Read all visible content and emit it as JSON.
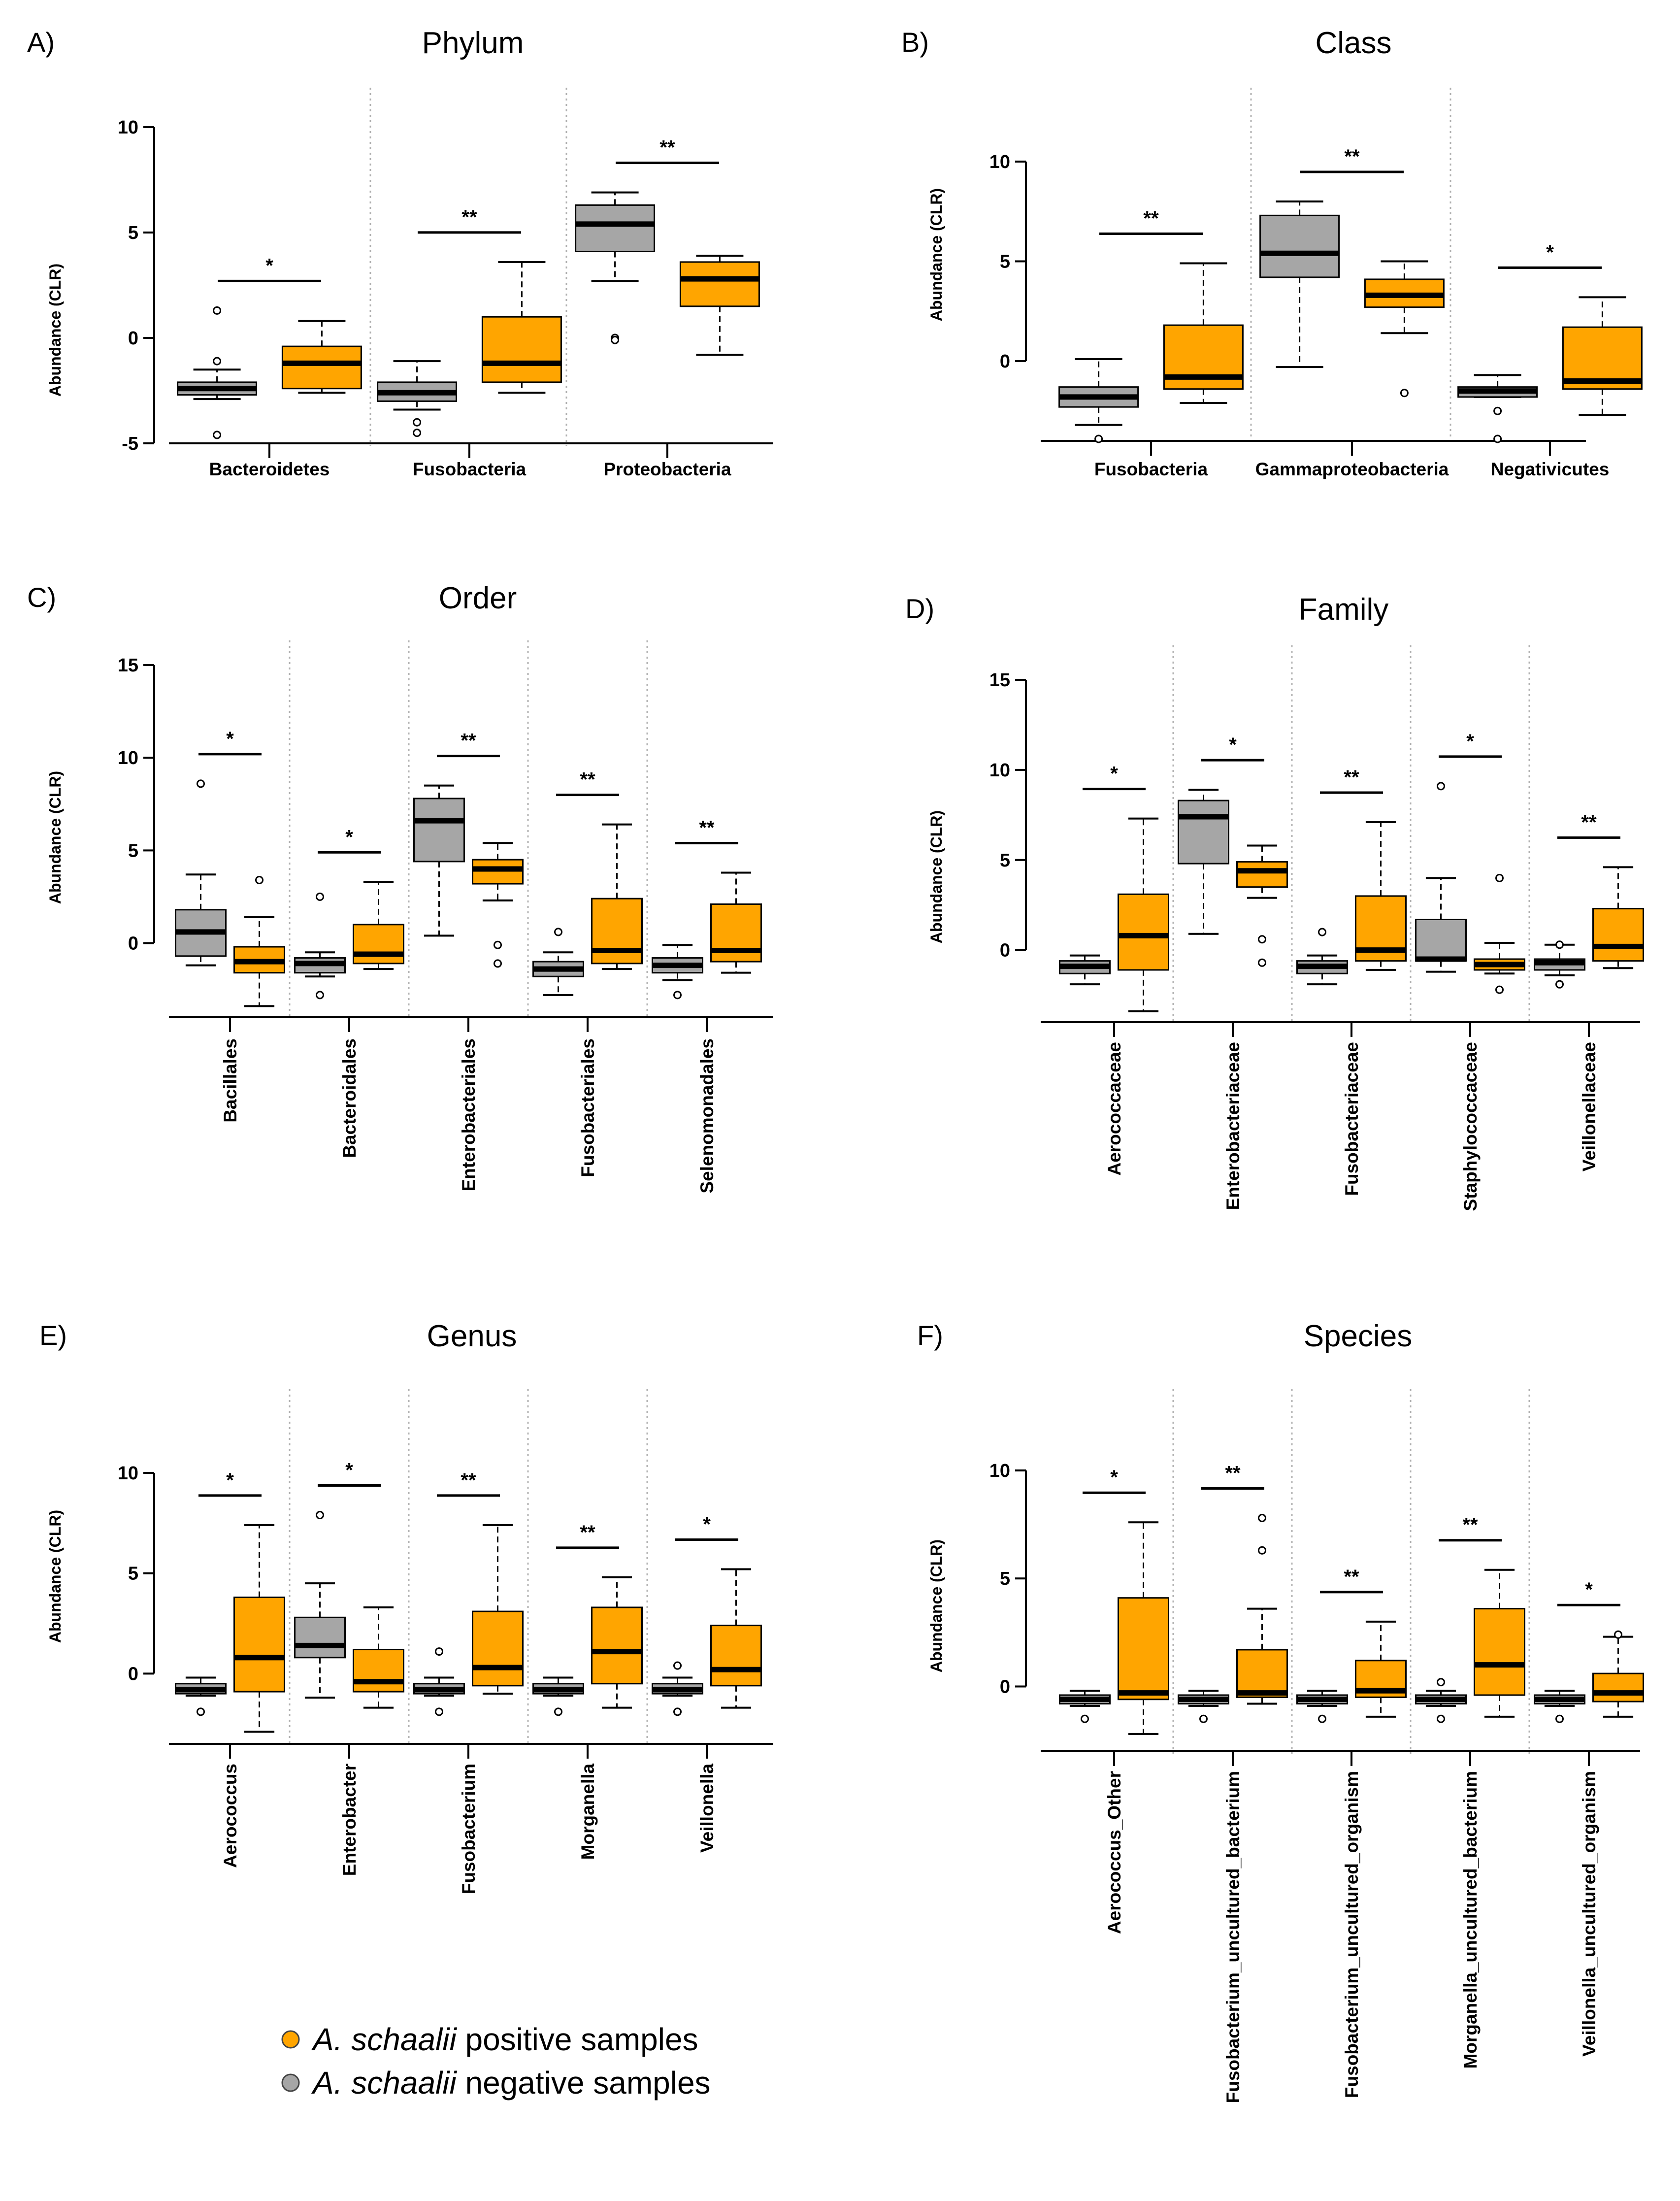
{
  "colors": {
    "positive": "#FFA500",
    "negative": "#A6A6A6"
  },
  "legend": {
    "items": [
      {
        "species": "A. schaalii",
        "label": "positive samples",
        "color": "#FFA500"
      },
      {
        "species": "A. schaalii",
        "label": "negative samples",
        "color": "#A6A6A6"
      }
    ]
  },
  "chart_data": [
    {
      "type": "box",
      "letter": "A)",
      "title": "Phylum",
      "ylabel": "Abundance (CLR)",
      "ylim": [
        -5,
        10
      ],
      "yticks": [
        -5,
        0,
        5,
        10
      ],
      "label_rotation": "horizontal",
      "categories": [
        "Bacteroidetes",
        "Fusobacteria",
        "Proteobacteria"
      ],
      "significance": [
        "*",
        "**",
        "**"
      ],
      "series": [
        {
          "name": "A. schaalii negative samples",
          "color": "#A6A6A6",
          "boxes": [
            {
              "wlo": -2.9,
              "q1": -2.7,
              "med": -2.4,
              "q3": -2.1,
              "whi": -1.5,
              "outliers": [
                1.3,
                -1.1,
                -4.6
              ]
            },
            {
              "wlo": -3.4,
              "q1": -3.0,
              "med": -2.6,
              "q3": -2.1,
              "whi": -1.1,
              "outliers": [
                -4.0,
                -4.5
              ]
            },
            {
              "wlo": 2.7,
              "q1": 4.1,
              "med": 5.4,
              "q3": 6.3,
              "whi": 6.9,
              "outliers": [
                0.0,
                -0.1
              ]
            }
          ]
        },
        {
          "name": "A. schaalii positive samples",
          "color": "#FFA500",
          "boxes": [
            {
              "wlo": -2.6,
              "q1": -2.4,
              "med": -1.2,
              "q3": -0.4,
              "whi": 0.8,
              "outliers": []
            },
            {
              "wlo": -2.6,
              "q1": -2.1,
              "med": -1.2,
              "q3": 1.0,
              "whi": 3.6,
              "outliers": []
            },
            {
              "wlo": -0.8,
              "q1": 1.5,
              "med": 2.8,
              "q3": 3.6,
              "whi": 3.9,
              "outliers": []
            }
          ]
        }
      ]
    },
    {
      "type": "box",
      "letter": "B)",
      "title": "Class",
      "ylabel": "Abundance (CLR)",
      "ylim": [
        -4,
        10
      ],
      "yticks": [
        0,
        5,
        10
      ],
      "label_rotation": "horizontal",
      "categories": [
        "Fusobacteria",
        "Gammaproteobacteria",
        "Negativicutes"
      ],
      "significance": [
        "**",
        "**",
        "*"
      ],
      "series": [
        {
          "name": "A. schaalii negative samples",
          "color": "#A6A6A6",
          "boxes": [
            {
              "wlo": -3.2,
              "q1": -2.3,
              "med": -1.8,
              "q3": -1.3,
              "whi": 0.1,
              "outliers": [
                -3.9
              ]
            },
            {
              "wlo": -0.3,
              "q1": 4.2,
              "med": 5.4,
              "q3": 7.3,
              "whi": 8.0,
              "outliers": []
            },
            {
              "wlo": -1.8,
              "q1": -1.8,
              "med": -1.5,
              "q3": -1.3,
              "whi": -0.7,
              "outliers": [
                -2.5,
                -3.9
              ]
            }
          ]
        },
        {
          "name": "A. schaalii positive samples",
          "color": "#FFA500",
          "boxes": [
            {
              "wlo": -2.1,
              "q1": -1.4,
              "med": -0.8,
              "q3": 1.8,
              "whi": 4.9,
              "outliers": []
            },
            {
              "wlo": 1.4,
              "q1": 2.7,
              "med": 3.3,
              "q3": 4.1,
              "whi": 5.0,
              "outliers": [
                -1.6
              ]
            },
            {
              "wlo": -2.7,
              "q1": -1.4,
              "med": -1.0,
              "q3": 1.7,
              "whi": 3.2,
              "outliers": []
            }
          ]
        }
      ]
    },
    {
      "type": "box",
      "letter": "C)",
      "title": "Order",
      "ylabel": "Abundance (CLR)",
      "ylim": [
        -4,
        15
      ],
      "yticks": [
        0,
        5,
        10,
        15
      ],
      "label_rotation": "vertical",
      "categories": [
        "Bacillales",
        "Bacteroidales",
        "Enterobacteriales",
        "Fusobacteriales",
        "Selenomonadales"
      ],
      "significance": [
        "*",
        "*",
        "**",
        "**",
        "**"
      ],
      "series": [
        {
          "name": "A. schaalii negative samples",
          "color": "#A6A6A6",
          "boxes": [
            {
              "wlo": -1.2,
              "q1": -0.7,
              "med": 0.6,
              "q3": 1.8,
              "whi": 3.7,
              "outliers": [
                8.6
              ]
            },
            {
              "wlo": -1.8,
              "q1": -1.6,
              "med": -1.1,
              "q3": -0.8,
              "whi": -0.5,
              "outliers": [
                2.5,
                -2.8
              ]
            },
            {
              "wlo": 0.4,
              "q1": 4.4,
              "med": 6.6,
              "q3": 7.8,
              "whi": 8.5,
              "outliers": []
            },
            {
              "wlo": -2.8,
              "q1": -1.8,
              "med": -1.4,
              "q3": -1.0,
              "whi": -0.5,
              "outliers": [
                0.6
              ]
            },
            {
              "wlo": -2.0,
              "q1": -1.6,
              "med": -1.2,
              "q3": -0.8,
              "whi": -0.1,
              "outliers": [
                -2.8
              ]
            }
          ]
        },
        {
          "name": "A. schaalii positive samples",
          "color": "#FFA500",
          "boxes": [
            {
              "wlo": -3.4,
              "q1": -1.6,
              "med": -1.0,
              "q3": -0.2,
              "whi": 1.4,
              "outliers": [
                3.4
              ]
            },
            {
              "wlo": -1.4,
              "q1": -1.1,
              "med": -0.6,
              "q3": 1.0,
              "whi": 3.3,
              "outliers": []
            },
            {
              "wlo": 2.3,
              "q1": 3.2,
              "med": 4.0,
              "q3": 4.5,
              "whi": 5.4,
              "outliers": [
                -0.1,
                -1.1
              ]
            },
            {
              "wlo": -1.4,
              "q1": -1.1,
              "med": -0.4,
              "q3": 2.4,
              "whi": 6.4,
              "outliers": []
            },
            {
              "wlo": -1.6,
              "q1": -1.0,
              "med": -0.4,
              "q3": 2.1,
              "whi": 3.8,
              "outliers": []
            }
          ]
        }
      ]
    },
    {
      "type": "box",
      "letter": "D)",
      "title": "Family",
      "ylabel": "Abundance (CLR)",
      "ylim": [
        -4,
        15
      ],
      "yticks": [
        0,
        5,
        10,
        15
      ],
      "label_rotation": "vertical",
      "categories": [
        "Aerococcaceae",
        "Enterobacteriaceae",
        "Fusobacteriaceae",
        "Staphylococcaceae",
        "Veillonellaceae"
      ],
      "significance": [
        "*",
        "*",
        "**",
        "*",
        "**"
      ],
      "series": [
        {
          "name": "A. schaalii negative samples",
          "color": "#A6A6A6",
          "boxes": [
            {
              "wlo": -1.9,
              "q1": -1.3,
              "med": -0.9,
              "q3": -0.6,
              "whi": -0.3,
              "outliers": []
            },
            {
              "wlo": 0.9,
              "q1": 4.8,
              "med": 7.4,
              "q3": 8.3,
              "whi": 8.9,
              "outliers": []
            },
            {
              "wlo": -1.9,
              "q1": -1.3,
              "med": -0.9,
              "q3": -0.6,
              "whi": -0.3,
              "outliers": [
                1.0
              ]
            },
            {
              "wlo": -1.2,
              "q1": -0.6,
              "med": -0.5,
              "q3": 1.7,
              "whi": 4.0,
              "outliers": [
                9.1
              ]
            },
            {
              "wlo": -1.4,
              "q1": -1.1,
              "med": -0.7,
              "q3": -0.5,
              "whi": 0.3,
              "outliers": [
                0.3,
                -1.9
              ]
            }
          ]
        },
        {
          "name": "A. schaalii positive samples",
          "color": "#FFA500",
          "boxes": [
            {
              "wlo": -3.4,
              "q1": -1.1,
              "med": 0.8,
              "q3": 3.1,
              "whi": 7.3,
              "outliers": []
            },
            {
              "wlo": 2.9,
              "q1": 3.5,
              "med": 4.4,
              "q3": 4.9,
              "whi": 5.8,
              "outliers": [
                0.6,
                -0.7
              ]
            },
            {
              "wlo": -1.1,
              "q1": -0.6,
              "med": 0.0,
              "q3": 3.0,
              "whi": 7.1,
              "outliers": []
            },
            {
              "wlo": -1.3,
              "q1": -1.1,
              "med": -0.8,
              "q3": -0.5,
              "whi": 0.4,
              "outliers": [
                4.0,
                -2.2
              ]
            },
            {
              "wlo": -1.0,
              "q1": -0.6,
              "med": 0.2,
              "q3": 2.3,
              "whi": 4.6,
              "outliers": []
            }
          ]
        }
      ]
    },
    {
      "type": "box",
      "letter": "E)",
      "title": "Genus",
      "ylabel": "Abundance (CLR)",
      "ylim": [
        -3.5,
        10
      ],
      "yticks": [
        0,
        5,
        10
      ],
      "label_rotation": "vertical",
      "categories": [
        "Aerococcus",
        "Enterobacter",
        "Fusobacterium",
        "Morganella",
        "Veillonella"
      ],
      "significance": [
        "*",
        "*",
        "**",
        "**",
        "*"
      ],
      "series": [
        {
          "name": "A. schaalii negative samples",
          "color": "#A6A6A6",
          "boxes": [
            {
              "wlo": -1.1,
              "q1": -1.0,
              "med": -0.8,
              "q3": -0.5,
              "whi": -0.2,
              "outliers": [
                -1.9
              ]
            },
            {
              "wlo": -1.2,
              "q1": 0.8,
              "med": 1.4,
              "q3": 2.8,
              "whi": 4.5,
              "outliers": [
                7.9
              ]
            },
            {
              "wlo": -1.1,
              "q1": -1.0,
              "med": -0.8,
              "q3": -0.5,
              "whi": -0.2,
              "outliers": [
                1.1,
                -1.9
              ]
            },
            {
              "wlo": -1.1,
              "q1": -1.0,
              "med": -0.8,
              "q3": -0.5,
              "whi": -0.2,
              "outliers": [
                -1.9
              ]
            },
            {
              "wlo": -1.1,
              "q1": -1.0,
              "med": -0.8,
              "q3": -0.5,
              "whi": -0.2,
              "outliers": [
                0.4,
                -1.9
              ]
            }
          ]
        },
        {
          "name": "A. schaalii positive samples",
          "color": "#FFA500",
          "boxes": [
            {
              "wlo": -2.9,
              "q1": -0.9,
              "med": 0.8,
              "q3": 3.8,
              "whi": 7.4,
              "outliers": []
            },
            {
              "wlo": -1.7,
              "q1": -0.9,
              "med": -0.4,
              "q3": 1.2,
              "whi": 3.3,
              "outliers": []
            },
            {
              "wlo": -1.0,
              "q1": -0.6,
              "med": 0.3,
              "q3": 3.1,
              "whi": 7.4,
              "outliers": []
            },
            {
              "wlo": -1.7,
              "q1": -0.5,
              "med": 1.1,
              "q3": 3.3,
              "whi": 4.8,
              "outliers": []
            },
            {
              "wlo": -1.7,
              "q1": -0.6,
              "med": 0.2,
              "q3": 2.4,
              "whi": 5.2,
              "outliers": []
            }
          ]
        }
      ]
    },
    {
      "type": "box",
      "letter": "F)",
      "title": "Species",
      "ylabel": "Abundance (CLR)",
      "ylim": [
        -3,
        10
      ],
      "yticks": [
        0,
        5,
        10
      ],
      "label_rotation": "vertical",
      "categories": [
        "Aerococcus_Other",
        "Fusobacterium_uncultured_bacterium",
        "Fusobacterium_uncultured_organism",
        "Morganella_uncultured_bacterium",
        "Veillonella_uncultured_organism"
      ],
      "significance": [
        "*",
        "**",
        "**",
        "**",
        "*"
      ],
      "series": [
        {
          "name": "A. schaalii negative samples",
          "color": "#A6A6A6",
          "boxes": [
            {
              "wlo": -0.9,
              "q1": -0.8,
              "med": -0.6,
              "q3": -0.4,
              "whi": -0.2,
              "outliers": [
                -1.5
              ]
            },
            {
              "wlo": -0.9,
              "q1": -0.8,
              "med": -0.6,
              "q3": -0.4,
              "whi": -0.2,
              "outliers": [
                -1.5
              ]
            },
            {
              "wlo": -0.9,
              "q1": -0.8,
              "med": -0.6,
              "q3": -0.4,
              "whi": -0.2,
              "outliers": [
                -1.5
              ]
            },
            {
              "wlo": -0.9,
              "q1": -0.8,
              "med": -0.6,
              "q3": -0.4,
              "whi": -0.2,
              "outliers": [
                0.2,
                -1.5
              ]
            },
            {
              "wlo": -0.9,
              "q1": -0.8,
              "med": -0.6,
              "q3": -0.4,
              "whi": -0.2,
              "outliers": [
                -1.5
              ]
            }
          ]
        },
        {
          "name": "A. schaalii positive samples",
          "color": "#FFA500",
          "boxes": [
            {
              "wlo": -2.2,
              "q1": -0.6,
              "med": -0.3,
              "q3": 4.1,
              "whi": 7.6,
              "outliers": []
            },
            {
              "wlo": -0.8,
              "q1": -0.5,
              "med": -0.3,
              "q3": 1.7,
              "whi": 3.6,
              "outliers": [
                7.8,
                6.3
              ]
            },
            {
              "wlo": -1.4,
              "q1": -0.5,
              "med": -0.2,
              "q3": 1.2,
              "whi": 3.0,
              "outliers": []
            },
            {
              "wlo": -1.4,
              "q1": -0.4,
              "med": 1.0,
              "q3": 3.6,
              "whi": 5.4,
              "outliers": []
            },
            {
              "wlo": -1.4,
              "q1": -0.7,
              "med": -0.3,
              "q3": 0.6,
              "whi": 2.3,
              "outliers": [
                2.4
              ]
            }
          ]
        }
      ]
    }
  ]
}
